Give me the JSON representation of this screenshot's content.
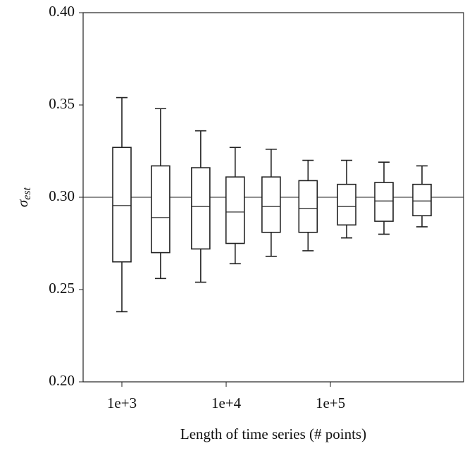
{
  "chart_data": {
    "type": "box",
    "x_log": true,
    "xlabel": "Length of time series (# points)",
    "ylabel": {
      "symbol": "σ",
      "subscript": "est"
    },
    "x": [
      1000,
      2350,
      5700,
      12200,
      27000,
      61000,
      143000,
      326000,
      755000
    ],
    "boxes": [
      {
        "low": 0.238,
        "q1": 0.265,
        "median": 0.2955,
        "q3": 0.327,
        "high": 0.354
      },
      {
        "low": 0.256,
        "q1": 0.27,
        "median": 0.289,
        "q3": 0.317,
        "high": 0.348
      },
      {
        "low": 0.254,
        "q1": 0.272,
        "median": 0.295,
        "q3": 0.316,
        "high": 0.336
      },
      {
        "low": 0.264,
        "q1": 0.275,
        "median": 0.292,
        "q3": 0.311,
        "high": 0.327
      },
      {
        "low": 0.268,
        "q1": 0.281,
        "median": 0.295,
        "q3": 0.311,
        "high": 0.326
      },
      {
        "low": 0.271,
        "q1": 0.281,
        "median": 0.294,
        "q3": 0.309,
        "high": 0.32
      },
      {
        "low": 0.278,
        "q1": 0.285,
        "median": 0.295,
        "q3": 0.307,
        "high": 0.32
      },
      {
        "low": 0.28,
        "q1": 0.287,
        "median": 0.298,
        "q3": 0.308,
        "high": 0.319
      },
      {
        "low": 0.284,
        "q1": 0.29,
        "median": 0.298,
        "q3": 0.307,
        "high": 0.317
      }
    ],
    "reference_line": 0.3,
    "xlim": [
      425,
      1890000
    ],
    "xticks": [
      {
        "value": 1000,
        "label": "1e+3"
      },
      {
        "value": 10000,
        "label": "1e+4"
      },
      {
        "value": 100000,
        "label": "1e+5"
      }
    ],
    "ylim": [
      0.2,
      0.4
    ],
    "yticks": [
      {
        "value": 0.2,
        "label": "0.20"
      },
      {
        "value": 0.25,
        "label": "0.25"
      },
      {
        "value": 0.3,
        "label": "0.30"
      },
      {
        "value": 0.35,
        "label": "0.35"
      },
      {
        "value": 0.4,
        "label": "0.40"
      }
    ],
    "color": "#222222"
  }
}
